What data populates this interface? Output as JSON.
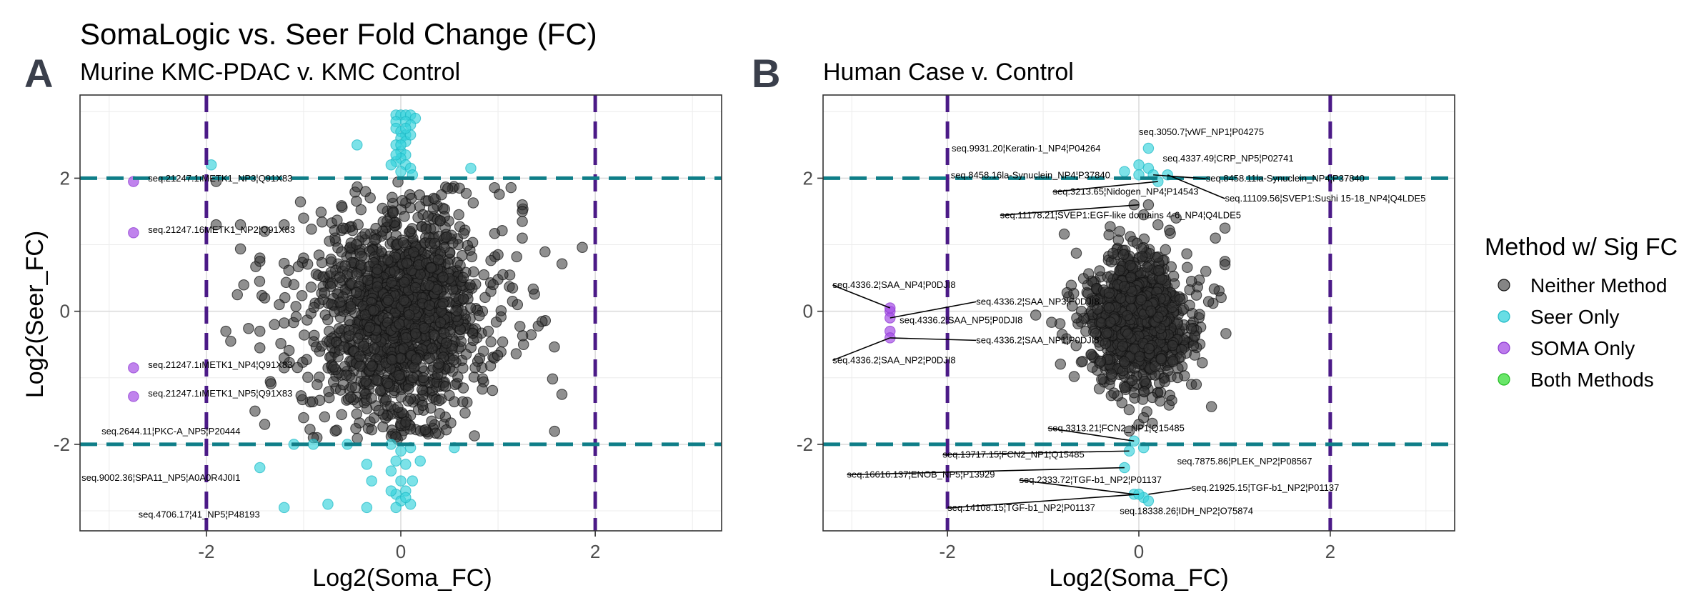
{
  "figure": {
    "title": "SomaLogic vs. Seer Fold Change (FC)",
    "panel_a_letter": "A",
    "panel_b_letter": "B"
  },
  "legend": {
    "title": "Method w/ Sig FC",
    "items": [
      {
        "label": "Neither Method",
        "color": "#333333"
      },
      {
        "label": "Seer Only",
        "color": "#35d3dc"
      },
      {
        "label": "SOMA Only",
        "color": "#a54ee6"
      },
      {
        "label": "Both Methods",
        "color": "#37dd37"
      }
    ]
  },
  "colors": {
    "vline": "#4b1a87",
    "hline": "#0f7e88",
    "neither": "#333333",
    "seer": "#35d3dc",
    "soma": "#a54ee6",
    "both": "#37dd37"
  },
  "chart_data": [
    {
      "type": "scatter",
      "panel": "A",
      "subtitle": "Murine KMC-PDAC v. KMC Control",
      "xlabel": "Log2(Soma_FC)",
      "ylabel": "Log2(Seer_FC)",
      "xlim": [
        -3.3,
        3.3
      ],
      "ylim": [
        -3.3,
        3.25
      ],
      "xticks": [
        -2,
        0,
        2
      ],
      "yticks": [
        -2,
        0,
        2
      ],
      "thresholds": {
        "x": [
          -2,
          2
        ],
        "y": [
          -2,
          2
        ]
      },
      "grid": true,
      "neither_cloud": {
        "approx_count": 1600,
        "x_center": 0.0,
        "x_spread": 0.38,
        "y_center": -0.05,
        "y_spread": 0.75
      },
      "extra_neither_points": [
        [
          -1.45,
          0.8
        ],
        [
          -1.45,
          0.75
        ],
        [
          -1.4,
          0.2
        ],
        [
          -1.45,
          -0.3
        ],
        [
          -1.45,
          -0.55
        ],
        [
          -1.2,
          -0.85
        ],
        [
          -1.2,
          -0.7
        ],
        [
          -1.3,
          -0.2
        ],
        [
          -1.25,
          0.1
        ],
        [
          -1.4,
          1.2
        ],
        [
          -1.8,
          -0.3
        ],
        [
          -1.75,
          -0.45
        ],
        [
          -1.2,
          1.3
        ],
        [
          -1.0,
          0.8
        ],
        [
          -1.0,
          1.4
        ],
        [
          -1.1,
          0.4
        ],
        [
          -1.9,
          1.95
        ],
        [
          -1.65,
          1.3
        ],
        [
          -1.9,
          1.3
        ],
        [
          -1.5,
          -1.5
        ],
        [
          -1.4,
          -1.7
        ],
        [
          -1.0,
          -1.6
        ],
        [
          -0.9,
          -1.9
        ],
        [
          1.25,
          1.6
        ],
        [
          1.25,
          1.35
        ],
        [
          1.25,
          1.1
        ],
        [
          1.0,
          0.85
        ],
        [
          1.05,
          0.55
        ],
        [
          1.2,
          0.1
        ],
        [
          0.95,
          0.4
        ],
        [
          1.15,
          0.35
        ],
        [
          0.9,
          -0.3
        ],
        [
          0.85,
          -0.6
        ],
        [
          1.25,
          1.5
        ]
      ],
      "seer_points": [
        [
          -0.05,
          2.95
        ],
        [
          0.0,
          2.95
        ],
        [
          0.05,
          2.95
        ],
        [
          0.1,
          2.95
        ],
        [
          0.15,
          2.9
        ],
        [
          -0.05,
          2.85
        ],
        [
          0.05,
          2.85
        ],
        [
          0.1,
          2.8
        ],
        [
          -0.05,
          2.75
        ],
        [
          0.0,
          2.7
        ],
        [
          0.05,
          2.65
        ],
        [
          0.0,
          2.6
        ],
        [
          0.05,
          2.55
        ],
        [
          -0.05,
          2.5
        ],
        [
          0.0,
          2.4
        ],
        [
          0.05,
          2.35
        ],
        [
          0.0,
          2.3
        ],
        [
          -0.05,
          2.25
        ],
        [
          0.05,
          2.2
        ],
        [
          0.1,
          2.15
        ],
        [
          0.0,
          2.1
        ],
        [
          -0.1,
          2.2
        ],
        [
          -0.05,
          2.35
        ],
        [
          0.0,
          2.5
        ],
        [
          0.1,
          2.65
        ],
        [
          0.05,
          2.75
        ],
        [
          -0.45,
          2.5
        ],
        [
          0.72,
          2.15
        ],
        [
          -1.95,
          2.2
        ],
        [
          0.12,
          2.05
        ],
        [
          -0.1,
          -2.0
        ],
        [
          0.0,
          -2.1
        ],
        [
          0.1,
          -2.05
        ],
        [
          -0.05,
          -2.25
        ],
        [
          0.05,
          -2.3
        ],
        [
          -0.1,
          -2.4
        ],
        [
          0.0,
          -2.55
        ],
        [
          0.05,
          -2.7
        ],
        [
          -0.05,
          -2.75
        ],
        [
          0.0,
          -2.85
        ],
        [
          0.1,
          -2.9
        ],
        [
          -0.05,
          -2.95
        ],
        [
          0.05,
          -2.8
        ],
        [
          -0.1,
          -2.7
        ],
        [
          0.12,
          -2.55
        ],
        [
          -0.35,
          -2.3
        ],
        [
          -0.3,
          -2.55
        ],
        [
          -0.35,
          -2.95
        ],
        [
          -0.55,
          -2.0
        ],
        [
          -0.75,
          -2.9
        ],
        [
          -1.2,
          -2.95
        ],
        [
          -1.45,
          -2.35
        ],
        [
          -0.9,
          -2.0
        ],
        [
          -1.1,
          -2.0
        ],
        [
          0.55,
          -2.05
        ],
        [
          0.2,
          -2.25
        ]
      ],
      "soma_points": [
        [
          -2.75,
          1.95
        ],
        [
          -2.75,
          1.18
        ],
        [
          -2.75,
          -0.85
        ],
        [
          -2.75,
          -1.28
        ]
      ],
      "labels": [
        {
          "text": "seq.21247.1ıMETK1_NP3¦Q91X83",
          "x": -2.75,
          "y": 1.95
        },
        {
          "text": "seq.21247.16METK1_NP2¦Q91X83",
          "x": -2.75,
          "y": 1.18
        },
        {
          "text": "seq.21247.1ıMETK1_NP4¦Q91X83",
          "x": -2.75,
          "y": -0.85
        },
        {
          "text": "seq.21247.1ıMETK1_NP5¦Q91X83",
          "x": -2.75,
          "y": -1.28
        },
        {
          "text": "seq.2644.11¦PKC-A_NP5¦P20444",
          "x": -1.45,
          "y": -1.85
        },
        {
          "text": "seq.9002.36¦SPA11_NP5¦A0A0R4J0I1",
          "x": -1.45,
          "y": -2.55
        },
        {
          "text": "seq.4706.17¦41_NP5¦P48193",
          "x": -1.45,
          "y": -3.1
        }
      ]
    },
    {
      "type": "scatter",
      "panel": "B",
      "subtitle": "Human Case v. Control",
      "xlabel": "Log2(Soma_FC)",
      "ylabel": "",
      "xlim": [
        -3.3,
        3.3
      ],
      "ylim": [
        -3.3,
        3.25
      ],
      "xticks": [
        -2,
        0,
        2
      ],
      "yticks": [
        -2,
        0,
        2
      ],
      "thresholds": {
        "x": [
          -2,
          2
        ],
        "y": [
          -2,
          2
        ]
      },
      "grid": true,
      "neither_cloud": {
        "approx_count": 1300,
        "x_center": 0.0,
        "x_spread": 0.22,
        "y_center": -0.15,
        "y_spread": 0.42
      },
      "extra_neither_points": [
        [
          0.9,
          0.75
        ],
        [
          0.9,
          0.7
        ],
        [
          0.9,
          1.25
        ],
        [
          0.8,
          1.1
        ],
        [
          0.7,
          0.6
        ],
        [
          -0.6,
          0.0
        ],
        [
          -0.65,
          -0.1
        ],
        [
          0.55,
          -1.1
        ],
        [
          0.6,
          -1.1
        ],
        [
          -0.5,
          -0.65
        ],
        [
          -0.4,
          -0.75
        ],
        [
          0.1,
          1.6
        ],
        [
          -0.05,
          1.6
        ],
        [
          0.05,
          1.45
        ],
        [
          0.0,
          -1.7
        ],
        [
          0.05,
          -1.6
        ],
        [
          -0.1,
          -1.8
        ],
        [
          0.2,
          1.3
        ],
        [
          -0.2,
          1.2
        ],
        [
          0.55,
          0.45
        ]
      ],
      "seer_points": [
        [
          0.1,
          2.45
        ],
        [
          0.0,
          2.2
        ],
        [
          0.1,
          2.15
        ],
        [
          -0.15,
          2.1
        ],
        [
          0.0,
          2.05
        ],
        [
          0.15,
          2.05
        ],
        [
          0.3,
          2.05
        ],
        [
          0.2,
          1.95
        ],
        [
          -0.05,
          -1.95
        ],
        [
          0.05,
          -2.05
        ],
        [
          -0.1,
          -2.1
        ],
        [
          -0.15,
          -2.35
        ],
        [
          -0.05,
          -2.75
        ],
        [
          0.05,
          -2.8
        ],
        [
          0.1,
          -2.85
        ],
        [
          0.0,
          -2.75
        ]
      ],
      "soma_points": [
        [
          -2.6,
          0.0
        ],
        [
          -2.6,
          -0.1
        ],
        [
          -2.6,
          -0.3
        ],
        [
          -2.6,
          -0.4
        ],
        [
          -2.6,
          0.05
        ]
      ],
      "labels": [
        {
          "text": "seq.3050.7¦vWF_NP1¦P04275",
          "x": 0.1,
          "y": 2.45
        },
        {
          "text": "seq.9931.20¦Keratin-1_NP4¦P04264",
          "x": -0.15,
          "y": 2.1
        },
        {
          "text": "seq.4337.49¦CRP_NP5¦P02741",
          "x": 0.1,
          "y": 2.15
        },
        {
          "text": "seq.8458.16la-Synuclein_NP4¦P37840",
          "x": 0.0,
          "y": 2.05
        },
        {
          "text": "seq.8458.11la-Synuclein_NP4¦P37840",
          "x": 0.15,
          "y": 2.05
        },
        {
          "text": "seq.3213.65¦Nidogen_NP4¦P14543",
          "x": 0.2,
          "y": 1.95
        },
        {
          "text": "seq.11109.56¦SVEP1:Sushi 15-18_NP4¦Q4LDE5",
          "x": 0.3,
          "y": 2.05
        },
        {
          "text": "seq.11178.21¦SVEP1:EGF-like domains 4-6_NP4¦Q4LDE5",
          "x": 0.0,
          "y": 1.6
        },
        {
          "text": "seq.4336.2¦SAA_NP4¦P0DJI8",
          "x": -2.6,
          "y": 0.05
        },
        {
          "text": "seq.4336.2¦SAA_NP3¦P0DJI8",
          "x": -2.6,
          "y": -0.1
        },
        {
          "text": "seq.4336.2¦SAA_NP5¦P0DJI8",
          "x": -2.6,
          "y": -0.3
        },
        {
          "text": "seq.4336.2¦SAA_NP1¦P0DJI8",
          "x": -2.6,
          "y": -0.4
        },
        {
          "text": "seq.4336.2¦SAA_NP2¦P0DJI8",
          "x": -2.6,
          "y": -0.4
        },
        {
          "text": "seq.3313.21¦FCN2_NP1¦Q15485",
          "x": -0.05,
          "y": -1.95
        },
        {
          "text": "seq.13717.15¦FCN2_NP1¦Q15485",
          "x": -0.1,
          "y": -2.1
        },
        {
          "text": "seq.7875.86¦PLEK_NP2¦P08567",
          "x": 0.05,
          "y": -2.05
        },
        {
          "text": "seq.16616.137¦ENOB_NP5¦P13929",
          "x": -0.15,
          "y": -2.35
        },
        {
          "text": "seq.2333.72¦TGF-b1_NP2¦P01137",
          "x": -0.05,
          "y": -2.75
        },
        {
          "text": "seq.21925.15¦TGF-b1_NP2¦P01137",
          "x": 0.1,
          "y": -2.75
        },
        {
          "text": "seq.14108.15¦TGF-b1_NP2¦P01137",
          "x": 0.0,
          "y": -2.75
        },
        {
          "text": "seq.18338.26¦IDH_NP2¦O75874",
          "x": 0.05,
          "y": -2.85
        }
      ]
    }
  ]
}
